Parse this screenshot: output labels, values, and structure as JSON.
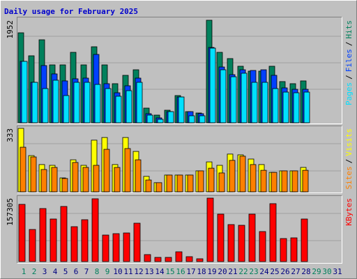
{
  "chart_data": {
    "type": "bar",
    "title": "Daily usage for February 2025",
    "categories": [
      "1",
      "2",
      "3",
      "4",
      "5",
      "6",
      "7",
      "8",
      "9",
      "10",
      "11",
      "12",
      "13",
      "14",
      "15",
      "16",
      "17",
      "18",
      "19",
      "20",
      "21",
      "22",
      "23",
      "24",
      "25",
      "26",
      "27",
      "28",
      "29",
      "30",
      "31"
    ],
    "category_colors": [
      "#00805C",
      "#00805C",
      "#000080",
      "#000080",
      "#000080",
      "#000080",
      "#000080",
      "#00805C",
      "#00805C",
      "#000080",
      "#000080",
      "#000080",
      "#000080",
      "#000080",
      "#00805C",
      "#00805C",
      "#000080",
      "#000080",
      "#000080",
      "#000080",
      "#000080",
      "#00805C",
      "#00805C",
      "#000080",
      "#000080",
      "#000080",
      "#000080",
      "#000080",
      "#00805C",
      "#00805C",
      "#000080"
    ],
    "legend_separator": "/",
    "panels": [
      {
        "ylim": [
          0,
          1952
        ],
        "yticks": [
          1952
        ],
        "series": [
          {
            "name": "Hits",
            "color": "#00805C",
            "values": [
              1713,
              1275,
              1580,
              1102,
              1102,
              1341,
              1102,
              1447,
              1102,
              744,
              903,
              1009,
              279,
              146,
              239,
              518,
              212,
              186,
              1952,
              1341,
              1222,
              1076,
              983,
              983,
              1076,
              784,
              744,
              797,
              null,
              null,
              null
            ]
          },
          {
            "name": "Files",
            "color": "#0040FF",
            "values": [
              1169,
              770,
              1089,
              930,
              797,
              837,
              850,
              1301,
              744,
              571,
              704,
              850,
              173,
              93,
              212,
              491,
              212,
              173,
              1434,
              1062,
              916,
              1009,
              996,
              1009,
              903,
              664,
              637,
              637,
              null,
              null,
              null
            ]
          },
          {
            "name": "Pages",
            "color": "#00E0FF",
            "values": [
              1169,
              770,
              651,
              810,
              518,
              770,
              770,
              730,
              651,
              505,
              611,
              770,
              146,
              66,
              212,
              491,
              133,
              133,
              1421,
              1009,
              876,
              943,
              770,
              770,
              651,
              584,
              571,
              584,
              null,
              null,
              null
            ]
          }
        ]
      },
      {
        "ylim": [
          0,
          333
        ],
        "yticks": [
          333
        ],
        "series": [
          {
            "name": "Visits",
            "color": "#FFFF00",
            "values": [
              333,
              190,
              143,
              139,
              73,
              168,
              139,
              271,
              285,
              143,
              285,
              212,
              81,
              48,
              88,
              88,
              88,
              110,
              157,
              139,
              198,
              194,
              172,
              143,
              102,
              110,
              110,
              128,
              null,
              null,
              null
            ]
          },
          {
            "name": "Sites",
            "color": "#FF8000",
            "values": [
              234,
              183,
              117,
              128,
              70,
              154,
              128,
              139,
              223,
              128,
              227,
              168,
              62,
              48,
              88,
              88,
              88,
              110,
              124,
              99,
              165,
              187,
              143,
              113,
              102,
              110,
              110,
              113,
              null,
              null,
              null
            ]
          }
        ]
      },
      {
        "ylim": [
          0,
          157305
        ],
        "yticks": [
          157305
        ],
        "series": [
          {
            "name": "KBytes",
            "color": "#FF0000",
            "values": [
              141778,
              79534,
              131404,
              105469,
              136591,
              86450,
              103740,
              155610,
              65702,
              69160,
              70889,
              95095,
              17290,
              10374,
              10374,
              24206,
              12103,
              6916,
              157305,
              117572,
              91637,
              89908,
              117572,
              74347,
              143507,
              57057,
              58786,
              105469,
              null,
              null,
              null
            ]
          }
        ]
      }
    ]
  }
}
